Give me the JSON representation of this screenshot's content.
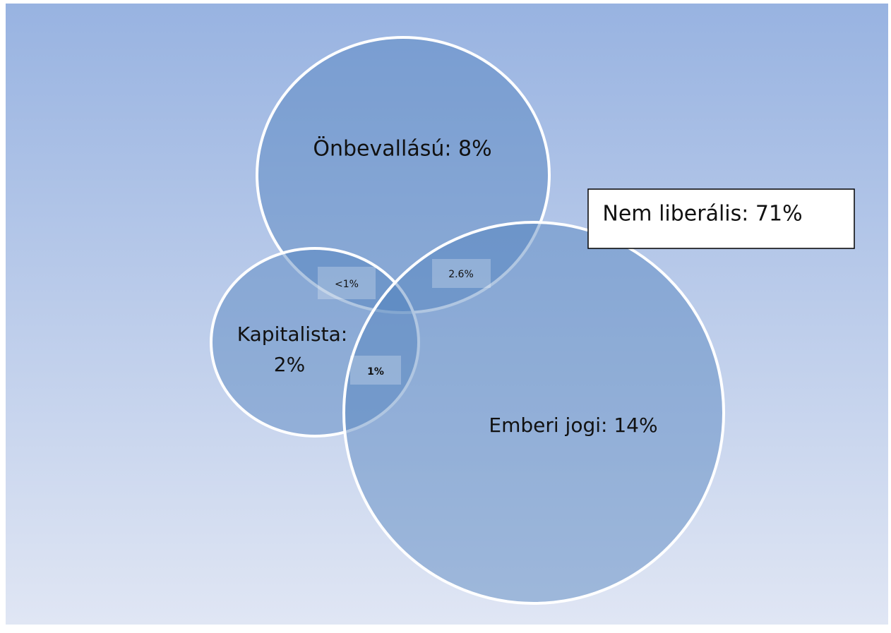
{
  "sets": [
    {
      "lines": [
        "Önbevallású: 8%"
      ]
    },
    {
      "lines": [
        "Kapitalista:",
        "2%"
      ]
    },
    {
      "lines": [
        "Emberi jogi: 14%"
      ]
    }
  ],
  "overlaps": [
    {
      "label": "<1%"
    },
    {
      "label": "2.6%"
    },
    {
      "label": "1%"
    }
  ],
  "outside": {
    "label": "Nem liberális: 71%"
  }
}
